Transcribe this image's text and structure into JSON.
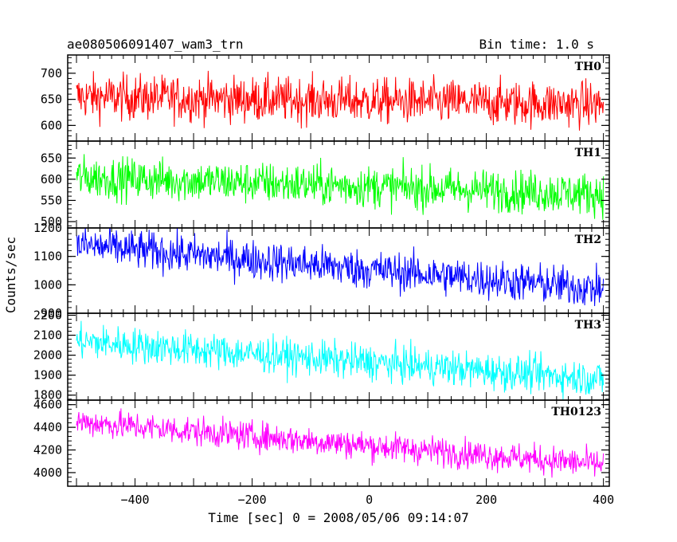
{
  "header": {
    "title": "ae080506091407_wam3_trn",
    "bin_time": "Bin time: 1.0 s"
  },
  "chart_data": {
    "type": "line",
    "title": "ae080506091407_wam3_trn",
    "xlabel": "Time [sec] 0 = 2008/05/06 09:14:07",
    "ylabel": "Counts/sec",
    "xlim": [
      -515,
      410
    ],
    "x_ticks": [
      -400,
      -200,
      0,
      200,
      400
    ],
    "x_tick_labels": [
      "−400",
      "−200",
      "0",
      "200",
      "400"
    ],
    "x_range": [
      -500,
      400
    ],
    "bin_time_s": 1.0,
    "panels": [
      {
        "name": "TH0",
        "color": "#ff0000",
        "ylim": [
          570,
          735
        ],
        "yticks": [
          600,
          650,
          700
        ],
        "ytick_labels": [
          "600",
          "650",
          "700"
        ],
        "trend": [
          [
            -500,
            655
          ],
          [
            400,
            640
          ]
        ],
        "noise": 22
      },
      {
        "name": "TH1",
        "color": "#00ff00",
        "ylim": [
          485,
          690
        ],
        "yticks": [
          500,
          550,
          600,
          650
        ],
        "ytick_labels": [
          "500",
          "550",
          "600",
          "650"
        ],
        "trend": [
          [
            -500,
            605
          ],
          [
            400,
            565
          ]
        ],
        "noise": 25
      },
      {
        "name": "TH2",
        "color": "#0000ff",
        "ylim": [
          900,
          1200
        ],
        "yticks": [
          900,
          1000,
          1100,
          1200
        ],
        "ytick_labels": [
          "900",
          "1000",
          "1100",
          "1200"
        ],
        "trend": [
          [
            -500,
            1140
          ],
          [
            400,
            985
          ]
        ],
        "noise": 35
      },
      {
        "name": "TH3",
        "color": "#00ffff",
        "ylim": [
          1775,
          2210
        ],
        "yticks": [
          1800,
          1900,
          2000,
          2100,
          2200
        ],
        "ytick_labels": [
          "1800",
          "1900",
          "2000",
          "2100",
          "2200"
        ],
        "trend": [
          [
            -500,
            2070
          ],
          [
            400,
            1880
          ]
        ],
        "noise": 45
      },
      {
        "name": "TH0123",
        "color": "#ff00ff",
        "ylim": [
          3880,
          4640
        ],
        "yticks": [
          4000,
          4200,
          4400,
          4600
        ],
        "ytick_labels": [
          "4000",
          "4200",
          "4400",
          "4600"
        ],
        "trend": [
          [
            -500,
            4450
          ],
          [
            400,
            4070
          ]
        ],
        "noise": 65
      }
    ]
  }
}
